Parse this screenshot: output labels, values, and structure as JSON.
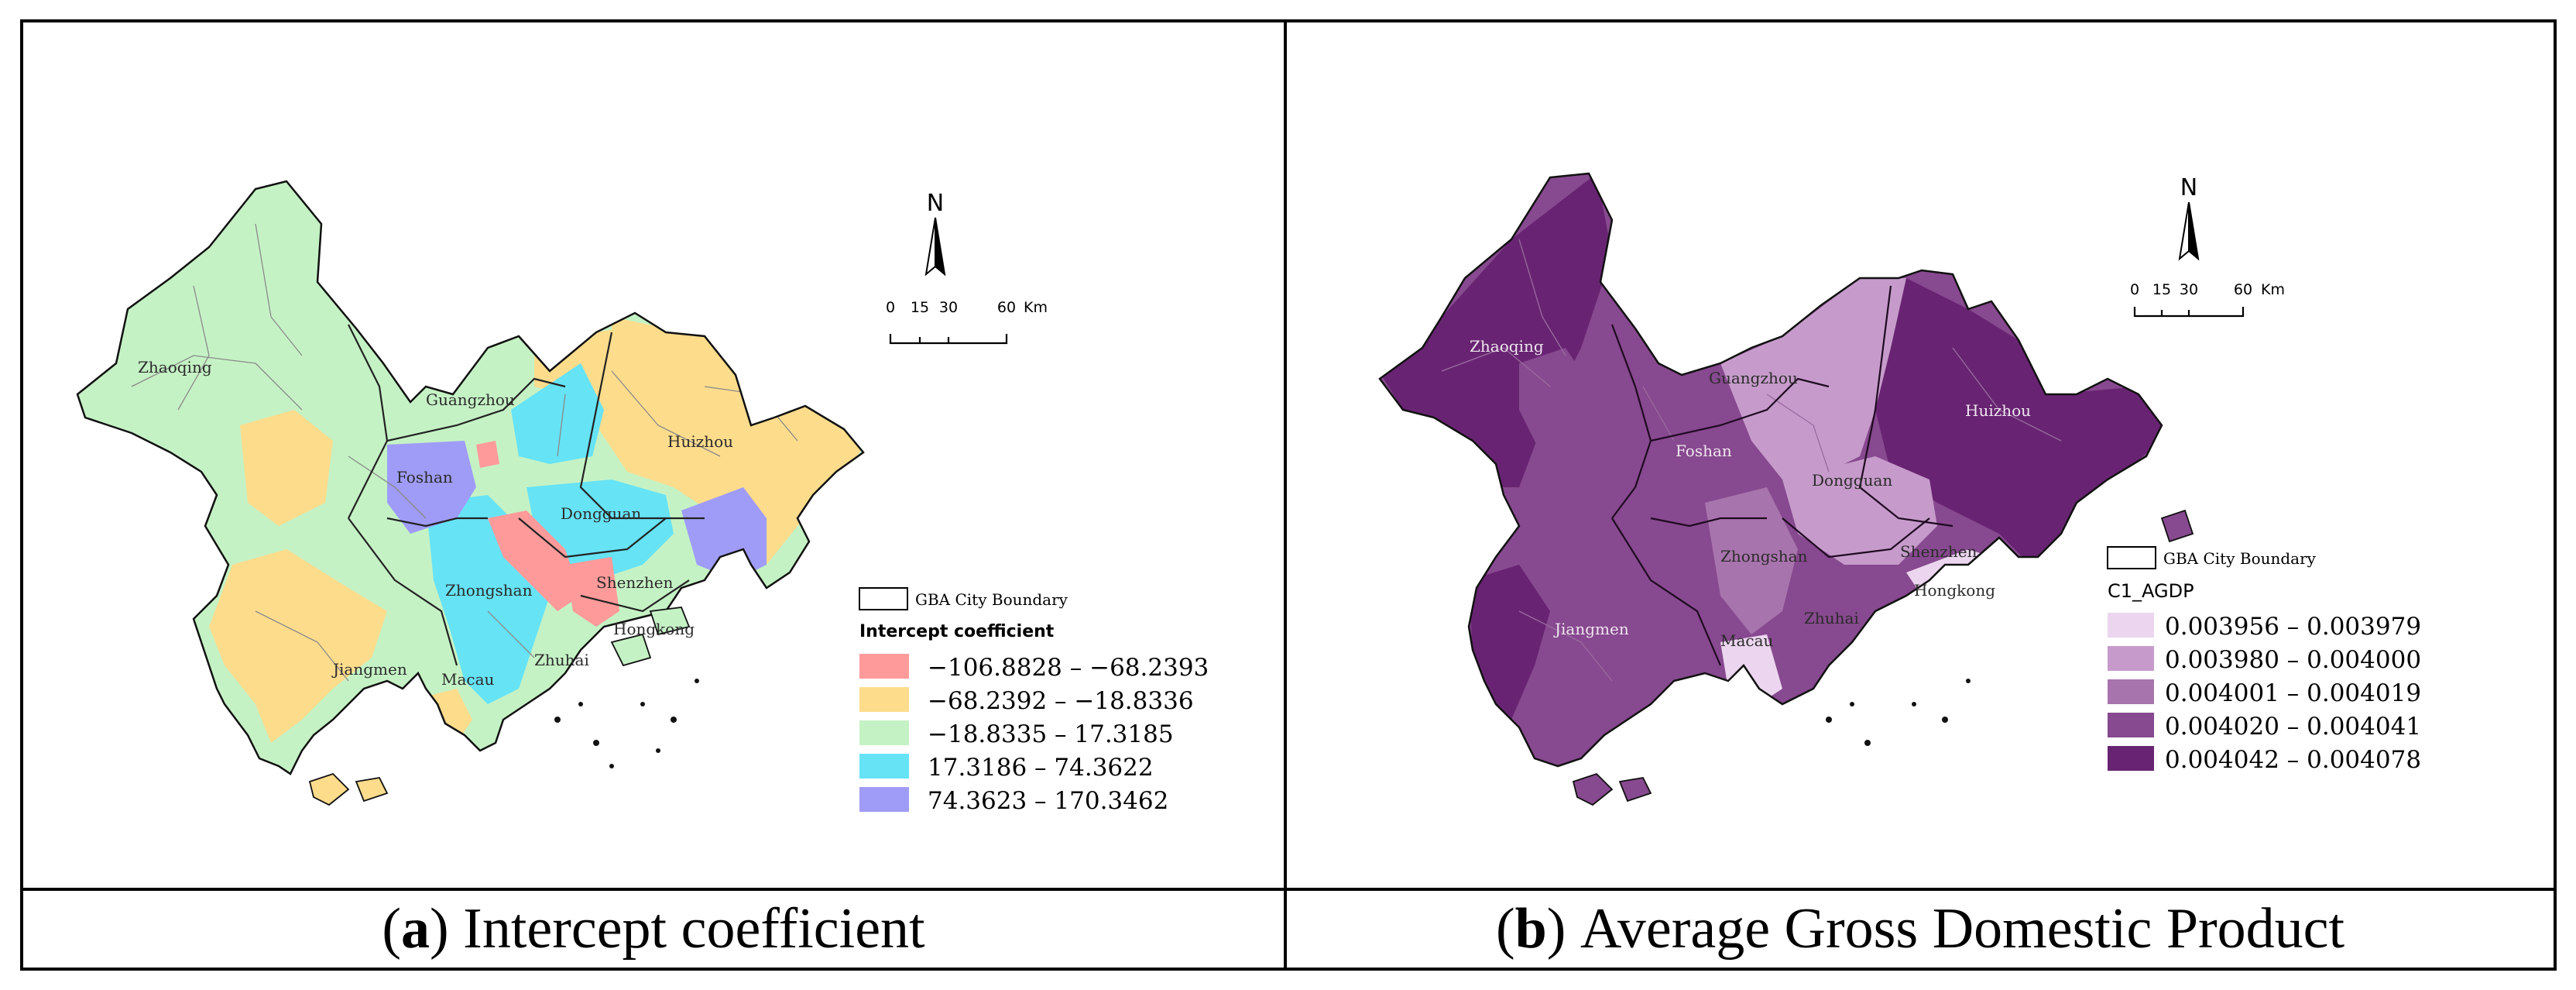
{
  "panels": {
    "a": {
      "caption_tag": "a",
      "caption_text": "Intercept coefficient",
      "north_label": "N",
      "scale_labels": [
        "0",
        "15",
        "30",
        "60",
        "Km"
      ],
      "boundary_label": "GBA City Boundary",
      "legend_title": "Intercept coefficient",
      "cities": [
        "Zhaoqing",
        "Guangzhou",
        "Huizhou",
        "Foshan",
        "Dongguan",
        "Zhongshan",
        "Shenzhen",
        "Jiangmen",
        "Macau",
        "Zhuhai",
        "Hongkong"
      ],
      "legend": [
        {
          "label": "−106.8828  –  −68.2393",
          "color": "#ff9a9a"
        },
        {
          "label": "−68.2392  –  −18.8336",
          "color": "#fddc8c"
        },
        {
          "label": "−18.8335  –  17.3185",
          "color": "#c5f2c5"
        },
        {
          "label": "17.3186  –  74.3622",
          "color": "#66e3f5"
        },
        {
          "label": "74.3623  –  170.3462",
          "color": "#9f9cf7"
        }
      ]
    },
    "b": {
      "caption_tag": "b",
      "caption_text": "Average Gross Domestic Product",
      "north_label": "N",
      "scale_labels": [
        "0",
        "15",
        "30",
        "60",
        "Km"
      ],
      "boundary_label": "GBA City Boundary",
      "legend_title": "C1_AGDP",
      "cities": [
        "Zhaoqing",
        "Guangzhou",
        "Huizhou",
        "Foshan",
        "Dongguan",
        "Zhongshan",
        "Shenzhen",
        "Jiangmen",
        "Macau",
        "Zhuhai",
        "Hongkong"
      ],
      "legend": [
        {
          "label": "0.003956  –  0.003979",
          "color": "#ecd6ef"
        },
        {
          "label": "0.003980  –  0.004000",
          "color": "#c69bcb"
        },
        {
          "label": "0.004001  –  0.004019",
          "color": "#a874ad"
        },
        {
          "label": "0.004020  –  0.004041",
          "color": "#87498f"
        },
        {
          "label": "0.004042  –  0.004078",
          "color": "#682472"
        }
      ]
    }
  }
}
